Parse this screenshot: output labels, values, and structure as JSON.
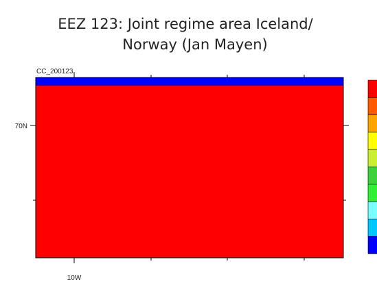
{
  "title_lines": [
    "EEZ 123: Joint regime area Iceland/",
    "Norway (Jan Mayen)"
  ],
  "map": {
    "label": "CC_200123",
    "lat_label": "70N",
    "lon_label": "10W"
  },
  "colorbar": [
    "#ff0000",
    "#ff5a00",
    "#ffa500",
    "#ffff00",
    "#ccf030",
    "#3cd23c",
    "#32f032",
    "#78ffff",
    "#00c8ff",
    "#0000ff"
  ]
}
